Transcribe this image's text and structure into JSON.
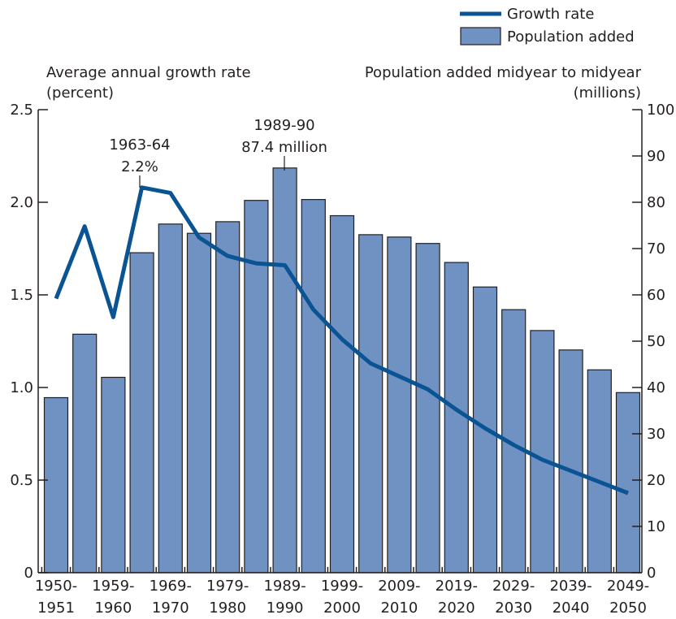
{
  "chart_data": {
    "type": "bar",
    "colors": {
      "bar_fill": "#7092c2",
      "line": "#0a5494"
    },
    "legend": {
      "placement": "top-right",
      "items": [
        {
          "label": "Growth rate",
          "kind": "line"
        },
        {
          "label": "Population added",
          "kind": "bar"
        }
      ]
    },
    "y_left": {
      "label_line1": "Average annual growth rate",
      "label_line2": "(percent)",
      "lim": [
        0,
        2.5
      ],
      "ticks": [
        "0",
        "0.5",
        "1.0",
        "1.5",
        "2.0",
        "2.5"
      ]
    },
    "y_right": {
      "label_line1": "Population added midyear to midyear",
      "label_line2": "(millions)",
      "lim": [
        0,
        100
      ],
      "ticks": [
        "0",
        "10",
        "20",
        "30",
        "40",
        "50",
        "60",
        "70",
        "80",
        "90",
        "100"
      ]
    },
    "x_tick_labels": [
      {
        "top": "1950-",
        "bottom": "1951"
      },
      {
        "top": "1959-",
        "bottom": "1960"
      },
      {
        "top": "1969-",
        "bottom": "1970"
      },
      {
        "top": "1979-",
        "bottom": "1980"
      },
      {
        "top": "1989-",
        "bottom": "1990"
      },
      {
        "top": "1999-",
        "bottom": "2000"
      },
      {
        "top": "2009-",
        "bottom": "2010"
      },
      {
        "top": "2019-",
        "bottom": "2020"
      },
      {
        "top": "2029-",
        "bottom": "2030"
      },
      {
        "top": "2039-",
        "bottom": "2040"
      },
      {
        "top": "2049-",
        "bottom": "2050"
      }
    ],
    "series": [
      {
        "name": "Population added",
        "axis": "right",
        "kind": "bar",
        "values": [
          37.8,
          51.5,
          42.2,
          69.1,
          75.3,
          73.3,
          75.8,
          80.4,
          87.4,
          80.6,
          77.1,
          73.0,
          72.5,
          71.1,
          67.0,
          61.7,
          56.8,
          52.3,
          48.1,
          43.8,
          38.9
        ]
      },
      {
        "name": "Growth rate",
        "axis": "left",
        "kind": "line",
        "values": [
          1.48,
          1.87,
          1.38,
          2.08,
          2.05,
          1.81,
          1.71,
          1.67,
          1.66,
          1.42,
          1.26,
          1.13,
          1.06,
          0.99,
          0.88,
          0.78,
          0.69,
          0.61,
          0.55,
          0.49,
          0.43
        ]
      }
    ],
    "annotations": [
      {
        "line1": "1963-64",
        "line2": "2.2%"
      },
      {
        "line1": "1989-90",
        "line2": "87.4 million"
      }
    ]
  }
}
